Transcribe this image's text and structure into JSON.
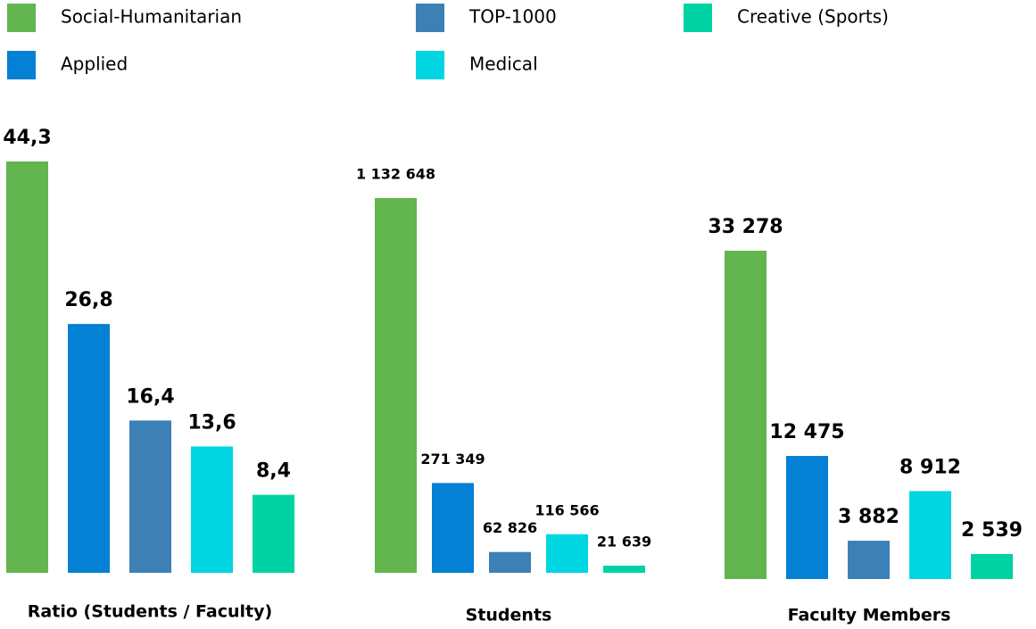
{
  "chart_data": [
    {
      "type": "bar",
      "title": "Ratio (Students / Faculty)",
      "categories": [
        "Social-Humanitarian",
        "Applied",
        "TOP-1000",
        "Medical",
        "Creative (Sports)"
      ],
      "colors": [
        "#62b54f",
        "#0480d4",
        "#3d80b5",
        "#00d5e2",
        "#00d3a3"
      ],
      "values": [
        44.3,
        26.8,
        16.4,
        13.6,
        8.4
      ],
      "value_labels": [
        "44,3",
        "26,8",
        "16,4",
        "13,6",
        "8,4"
      ]
    },
    {
      "type": "bar",
      "title": "Students",
      "categories": [
        "Social-Humanitarian",
        "Applied",
        "TOP-1000",
        "Medical",
        "Creative (Sports)"
      ],
      "colors": [
        "#62b54f",
        "#0480d4",
        "#3d80b5",
        "#00d5e2",
        "#00d3a3"
      ],
      "values": [
        1132648,
        271349,
        62826,
        116566,
        21639
      ],
      "value_labels": [
        "1 132 648",
        "271 349",
        "62 826",
        "116 566",
        "21 639"
      ]
    },
    {
      "type": "bar",
      "title": "Faculty Members",
      "categories": [
        "Social-Humanitarian",
        "Applied",
        "TOP-1000",
        "Medical",
        "Creative (Sports)"
      ],
      "colors": [
        "#62b54f",
        "#0480d4",
        "#3d80b5",
        "#00d5e2",
        "#00d3a3"
      ],
      "values": [
        33278,
        12475,
        3882,
        8912,
        2539
      ],
      "value_labels": [
        "33 278",
        "12 475",
        "3 882",
        "8 912",
        "2 539"
      ]
    }
  ]
}
